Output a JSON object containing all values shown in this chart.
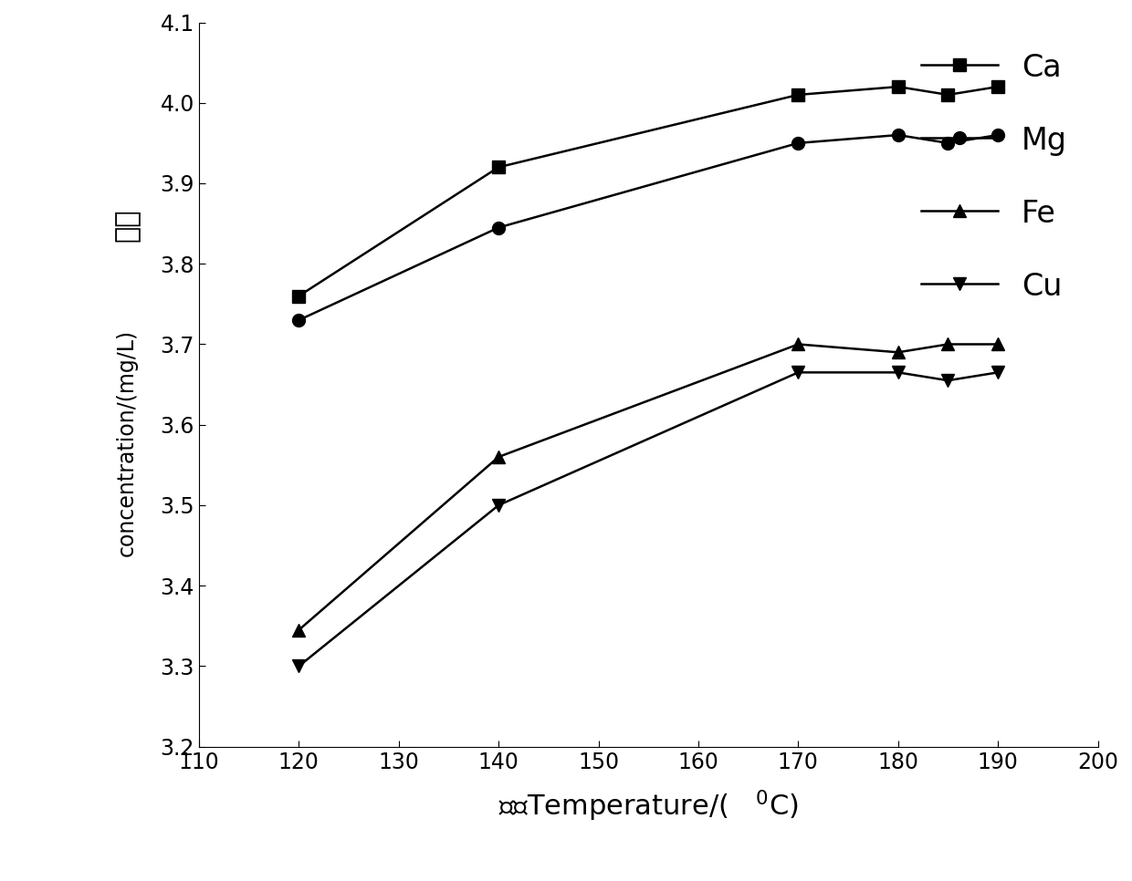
{
  "x": [
    120,
    140,
    170,
    180,
    185,
    190
  ],
  "Ca": [
    3.76,
    3.92,
    4.01,
    4.02,
    4.01,
    4.02
  ],
  "Mg": [
    3.73,
    3.845,
    3.95,
    3.96,
    3.95,
    3.96
  ],
  "Fe": [
    3.345,
    3.56,
    3.7,
    3.69,
    3.7,
    3.7
  ],
  "Cu": [
    3.3,
    3.5,
    3.665,
    3.665,
    3.655,
    3.665
  ],
  "xlabel": "温度Temperature/(   $^0$C)",
  "ylabel_cn": "浓度",
  "ylabel_en": "concentration/(mg/L)",
  "xlim": [
    110,
    200
  ],
  "ylim": [
    3.2,
    4.1
  ],
  "xticks": [
    110,
    120,
    130,
    140,
    150,
    160,
    170,
    180,
    190,
    200
  ],
  "yticks": [
    3.2,
    3.3,
    3.4,
    3.5,
    3.6,
    3.7,
    3.8,
    3.9,
    4.0,
    4.1
  ],
  "line_color": "#000000",
  "line_style": "-",
  "marker_Ca": "s",
  "marker_Mg": "o",
  "marker_Fe": "^",
  "marker_Cu": "v",
  "marker_size": 10,
  "line_width": 1.8,
  "legend_labels": [
    "Ca",
    "Mg",
    "Fe",
    "Cu"
  ],
  "legend_fontsize": 24,
  "tick_fontsize": 17,
  "xlabel_fontsize": 22,
  "ylabel_cn_fontsize": 22,
  "ylabel_en_fontsize": 17
}
